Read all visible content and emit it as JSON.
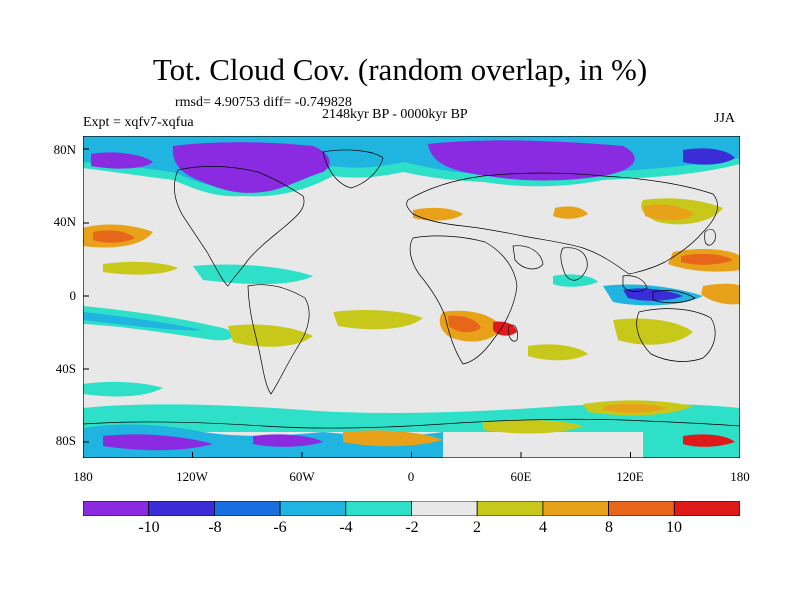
{
  "header": {
    "title": "Tot. Cloud Cov. (random overlap, in %)",
    "stats": "rmsd= 4.90753 diff= -0.749828",
    "period": "2148kyr BP - 0000kyr BP",
    "experiment": "Expt = xqfv7-xqfua",
    "season": "JJA"
  },
  "axes": {
    "y_ticks": [
      "80N",
      "40N",
      "0",
      "40S",
      "80S"
    ],
    "x_ticks": [
      "180",
      "120W",
      "60W",
      "0",
      "60E",
      "120E",
      "180"
    ]
  },
  "colorbar": {
    "labels": [
      "-10",
      "-8",
      "-6",
      "-4",
      "-2",
      "2",
      "4",
      "8",
      "10"
    ],
    "colors": [
      "#8a2be2",
      "#3a2cd6",
      "#1a6fe0",
      "#20b4e0",
      "#2ee0c8",
      "#e8e8e8",
      "#c8c81a",
      "#e8a21a",
      "#e8661a",
      "#e01a1a"
    ]
  }
}
